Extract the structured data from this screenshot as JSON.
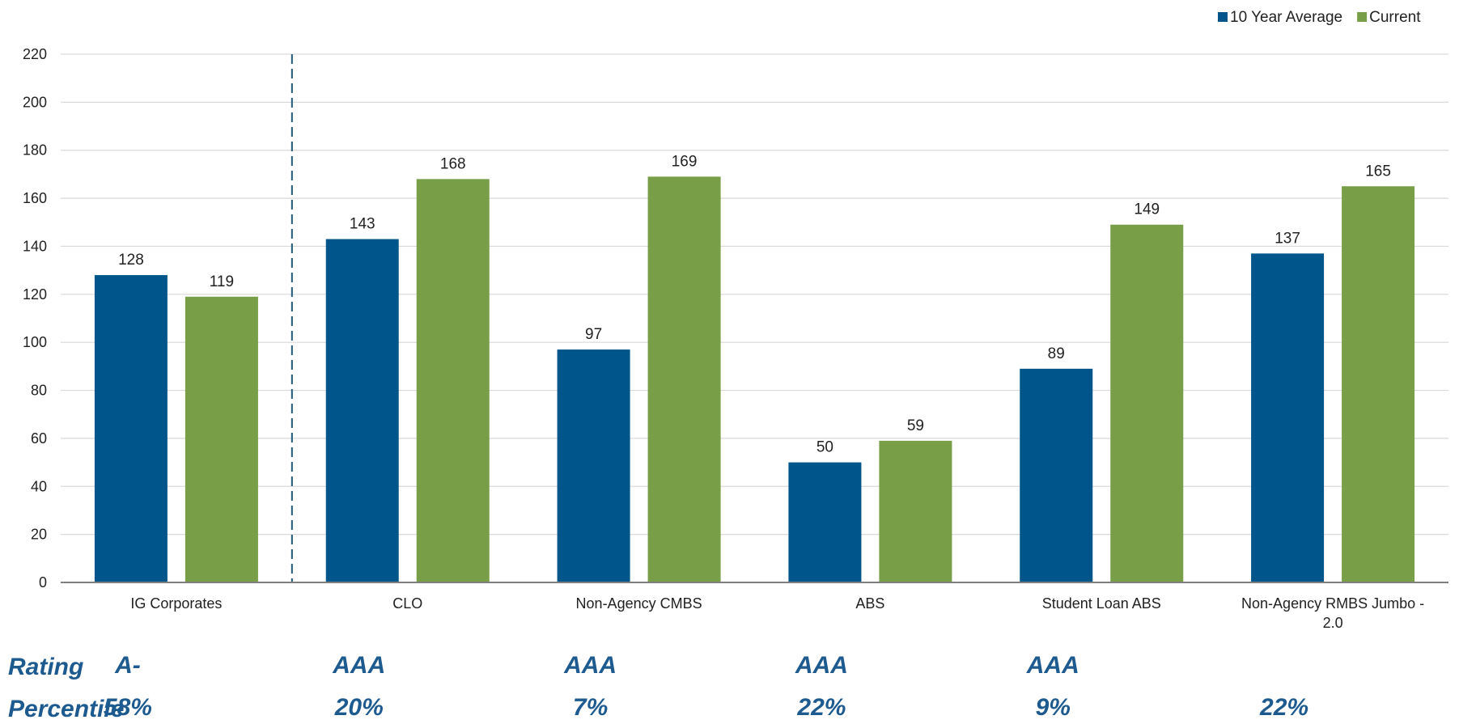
{
  "chart_data": {
    "type": "bar",
    "categories": [
      "IG Corporates",
      "CLO",
      "Non-Agency CMBS",
      "ABS",
      "Student Loan ABS",
      "Non-Agency RMBS Jumbo -\n2.0"
    ],
    "series": [
      {
        "name": "10 Year Average",
        "color": "#00568a",
        "values": [
          128,
          143,
          97,
          50,
          89,
          137
        ]
      },
      {
        "name": "Current",
        "color": "#789e48",
        "values": [
          119,
          168,
          169,
          59,
          149,
          165
        ]
      }
    ],
    "ylim": [
      0,
      220
    ],
    "yticks": [
      0,
      20,
      40,
      60,
      80,
      100,
      120,
      140,
      160,
      180,
      200,
      220
    ],
    "grid": true,
    "legend": "top-right",
    "separator_after_category": 0,
    "title": "",
    "xlabel": "",
    "ylabel": ""
  },
  "table": {
    "rating_label": "Rating",
    "percentile_label": "Percentile",
    "ratings": [
      "A-",
      "AAA",
      "AAA",
      "AAA",
      "AAA",
      ""
    ],
    "percentiles": [
      "58%",
      "20%",
      "7%",
      "22%",
      "9%",
      "22%"
    ]
  },
  "colors": {
    "row_text": "#1d5a8f",
    "grid": "#d9d9d9",
    "axis": "#7f7f7f",
    "separator": "#1e5a7a"
  }
}
